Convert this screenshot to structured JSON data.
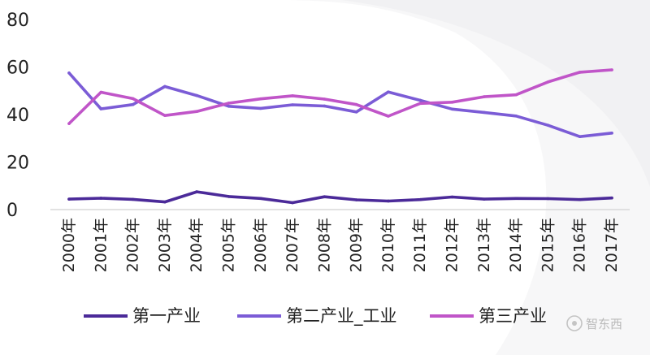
{
  "chart_data": {
    "type": "line",
    "title": "",
    "xlabel": "",
    "ylabel": "",
    "ylim": [
      0,
      80
    ],
    "yticks": [
      0,
      20,
      40,
      60,
      80
    ],
    "grid": false,
    "legend_position": "bottom",
    "categories": [
      "2000年",
      "2001年",
      "2002年",
      "2003年",
      "2004年",
      "2005年",
      "2006年",
      "2007年",
      "2008年",
      "2009年",
      "2010年",
      "2011年",
      "2012年",
      "2013年",
      "2014年",
      "2015年",
      "2016年",
      "2017年"
    ],
    "series": [
      {
        "name": "第一产业",
        "color": "#4b2a99",
        "values": [
          4.4,
          4.8,
          4.3,
          3.2,
          7.5,
          5.5,
          4.7,
          2.9,
          5.4,
          4.1,
          3.6,
          4.2,
          5.3,
          4.4,
          4.7,
          4.6,
          4.2,
          4.9
        ]
      },
      {
        "name": "第二产业_工业",
        "color": "#7b5cd6",
        "values": [
          57.5,
          42.4,
          44.2,
          51.8,
          48.0,
          43.5,
          42.6,
          44.1,
          43.6,
          41.1,
          49.5,
          46.0,
          42.3,
          40.9,
          39.4,
          35.5,
          30.7,
          32.2
        ]
      },
      {
        "name": "第三产业",
        "color": "#c055c8",
        "values": [
          36.2,
          49.4,
          46.7,
          39.6,
          41.3,
          44.8,
          46.6,
          47.9,
          46.5,
          44.2,
          39.3,
          44.7,
          45.2,
          47.5,
          48.3,
          53.7,
          57.8,
          58.8
        ]
      }
    ]
  },
  "watermark": {
    "text": "智东西"
  }
}
